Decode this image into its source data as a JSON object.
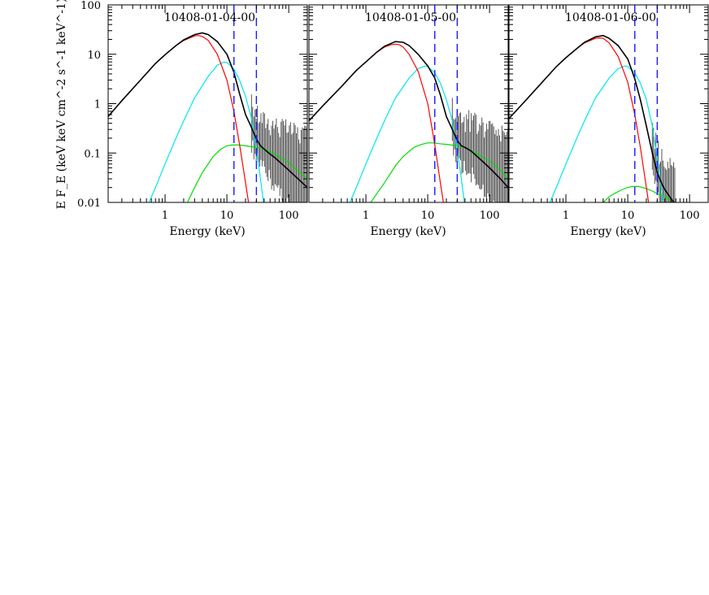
{
  "chart_data": [
    {
      "type": "line",
      "title": "10408-01-04-00",
      "xlabel": "Energy (keV)",
      "ylabel": "E F_E (keV keV cm^-2 s^-1 keV^-1)",
      "x_scale": "log",
      "y_scale": "log",
      "xlim": [
        0.12,
        200
      ],
      "ylim": [
        0.01,
        100
      ],
      "x_ticks": [
        1,
        10,
        100
      ],
      "x_tick_labels": [
        "1",
        "10",
        "100"
      ],
      "y_ticks": [
        0.01,
        0.1,
        1,
        10,
        100
      ],
      "y_tick_labels": [
        "0.01",
        "0.1",
        "1",
        "10",
        "100"
      ],
      "vlines": [
        13,
        30
      ],
      "series": [
        {
          "color": "#000000",
          "x": [
            0.12,
            0.2,
            0.4,
            0.7,
            1,
            1.5,
            2,
            3,
            4,
            5,
            7,
            10,
            13,
            16,
            20,
            25,
            30,
            35,
            40,
            50,
            60,
            80,
            100,
            150,
            200
          ],
          "y": [
            0.55,
            1.15,
            3.0,
            6.5,
            9.8,
            15,
            19.5,
            25,
            27,
            25,
            18,
            10,
            4.3,
            1.6,
            0.6,
            0.33,
            0.19,
            0.14,
            0.12,
            0.095,
            0.08,
            0.058,
            0.045,
            0.028,
            0.02
          ]
        },
        {
          "color": "#ff0000",
          "x": [
            0.12,
            0.2,
            0.4,
            0.7,
            1,
            1.5,
            2,
            3,
            3.5,
            4,
            5,
            7,
            10,
            13,
            16,
            20,
            25
          ],
          "y": [
            0.55,
            1.15,
            3.0,
            6.5,
            9.8,
            15,
            19,
            23.5,
            24,
            23,
            19,
            10,
            3,
            0.7,
            0.15,
            0.025,
            0.004
          ]
        },
        {
          "color": "#00e5ee",
          "x": [
            0.55,
            0.7,
            1,
            1.5,
            2,
            3,
            5,
            7,
            9,
            10,
            13,
            16,
            20,
            25,
            30,
            35,
            40
          ],
          "y": [
            0.01,
            0.02,
            0.06,
            0.2,
            0.45,
            1.3,
            3.6,
            6.0,
            7.0,
            6.8,
            5.0,
            3.0,
            1.4,
            0.5,
            0.12,
            0.03,
            0.008
          ]
        },
        {
          "color": "#00dd00",
          "x": [
            2.3,
            3,
            4,
            6,
            8,
            10,
            12,
            15,
            20,
            30,
            40,
            60,
            100,
            150,
            200
          ],
          "y": [
            0.01,
            0.02,
            0.04,
            0.085,
            0.12,
            0.14,
            0.145,
            0.145,
            0.14,
            0.13,
            0.12,
            0.095,
            0.065,
            0.04,
            0.03
          ]
        }
      ]
    },
    {
      "type": "line",
      "title": "10408-01-05-00",
      "xlabel": "Energy (keV)",
      "x_scale": "log",
      "y_scale": "log",
      "xlim": [
        0.12,
        200
      ],
      "ylim": [
        0.01,
        100
      ],
      "x_ticks": [
        1,
        10,
        100
      ],
      "x_tick_labels": [
        "1",
        "10",
        "100"
      ],
      "vlines": [
        13,
        30
      ],
      "series": [
        {
          "color": "#000000",
          "x": [
            0.12,
            0.2,
            0.4,
            0.7,
            1,
            1.5,
            2,
            3,
            4,
            5,
            7,
            10,
            13,
            16,
            20,
            25,
            30,
            35,
            40,
            50,
            60,
            80,
            100,
            150,
            200
          ],
          "y": [
            0.45,
            0.9,
            2.2,
            4.7,
            7.0,
            11,
            14.5,
            18,
            17.5,
            15,
            10,
            5.8,
            3.3,
            1.5,
            0.55,
            0.3,
            0.18,
            0.14,
            0.13,
            0.11,
            0.09,
            0.065,
            0.05,
            0.03,
            0.02
          ]
        },
        {
          "color": "#ff0000",
          "x": [
            0.12,
            0.2,
            0.4,
            0.7,
            1,
            1.5,
            2,
            2.5,
            3,
            3.5,
            4,
            5,
            7,
            10,
            13,
            16,
            20
          ],
          "y": [
            0.45,
            0.9,
            2.2,
            4.7,
            7.0,
            11,
            14,
            15.5,
            16,
            15.5,
            14,
            10,
            4.5,
            1.0,
            0.15,
            0.025,
            0.004
          ]
        },
        {
          "color": "#00e5ee",
          "x": [
            0.55,
            0.7,
            1,
            1.5,
            2,
            3,
            5,
            7,
            9,
            10,
            13,
            16,
            20,
            25,
            30,
            35,
            40
          ],
          "y": [
            0.01,
            0.02,
            0.06,
            0.2,
            0.45,
            1.3,
            3.3,
            5.1,
            5.8,
            5.6,
            4.2,
            2.6,
            1.2,
            0.45,
            0.12,
            0.03,
            0.008
          ]
        },
        {
          "color": "#00dd00",
          "x": [
            1.2,
            1.5,
            2,
            3,
            4,
            6,
            8,
            10,
            12,
            15,
            20,
            30,
            40,
            60,
            100,
            150,
            200
          ],
          "y": [
            0.01,
            0.015,
            0.025,
            0.055,
            0.085,
            0.13,
            0.15,
            0.16,
            0.16,
            0.155,
            0.15,
            0.14,
            0.13,
            0.1,
            0.07,
            0.045,
            0.03
          ]
        }
      ]
    },
    {
      "type": "line",
      "title": "10408-01-06-00",
      "xlabel": "Energy (keV)",
      "x_scale": "log",
      "y_scale": "log",
      "xlim": [
        0.12,
        200
      ],
      "ylim": [
        0.01,
        100
      ],
      "x_ticks": [
        1,
        10,
        100
      ],
      "x_tick_labels": [
        "1",
        "10",
        "100"
      ],
      "vlines": [
        13,
        30
      ],
      "series": [
        {
          "color": "#000000",
          "x": [
            0.12,
            0.2,
            0.4,
            0.7,
            1,
            1.5,
            2,
            3,
            4,
            5,
            7,
            10,
            13,
            16,
            20,
            25,
            30,
            35,
            40,
            50,
            60
          ],
          "y": [
            0.5,
            1.0,
            2.6,
            5.6,
            8.5,
            13,
            17.5,
            22.5,
            24,
            21,
            15,
            8.0,
            3.2,
            1.2,
            0.35,
            0.1,
            0.04,
            0.025,
            0.018,
            0.012,
            0.009
          ]
        },
        {
          "color": "#ff0000",
          "x": [
            0.12,
            0.2,
            0.4,
            0.7,
            1,
            1.5,
            2,
            3,
            3.5,
            4,
            5,
            7,
            10,
            13,
            16,
            20,
            25
          ],
          "y": [
            0.5,
            1.0,
            2.6,
            5.6,
            8.5,
            13,
            17,
            21,
            21.5,
            21,
            17,
            9,
            2.7,
            0.6,
            0.13,
            0.02,
            0.003
          ]
        },
        {
          "color": "#00e5ee",
          "x": [
            0.55,
            0.7,
            1,
            1.5,
            2,
            3,
            5,
            7,
            9,
            10,
            13,
            16,
            20,
            25,
            30,
            35,
            40
          ],
          "y": [
            0.01,
            0.02,
            0.06,
            0.2,
            0.45,
            1.3,
            3.3,
            5.1,
            5.8,
            5.6,
            4.2,
            2.6,
            1.2,
            0.35,
            0.08,
            0.02,
            0.005
          ]
        },
        {
          "color": "#00dd00",
          "x": [
            4,
            5,
            6,
            8,
            10,
            12,
            15,
            20,
            25,
            30,
            40,
            50,
            60
          ],
          "y": [
            0.01,
            0.013,
            0.015,
            0.018,
            0.02,
            0.021,
            0.021,
            0.019,
            0.017,
            0.015,
            0.013,
            0.011,
            0.01
          ]
        }
      ]
    }
  ]
}
